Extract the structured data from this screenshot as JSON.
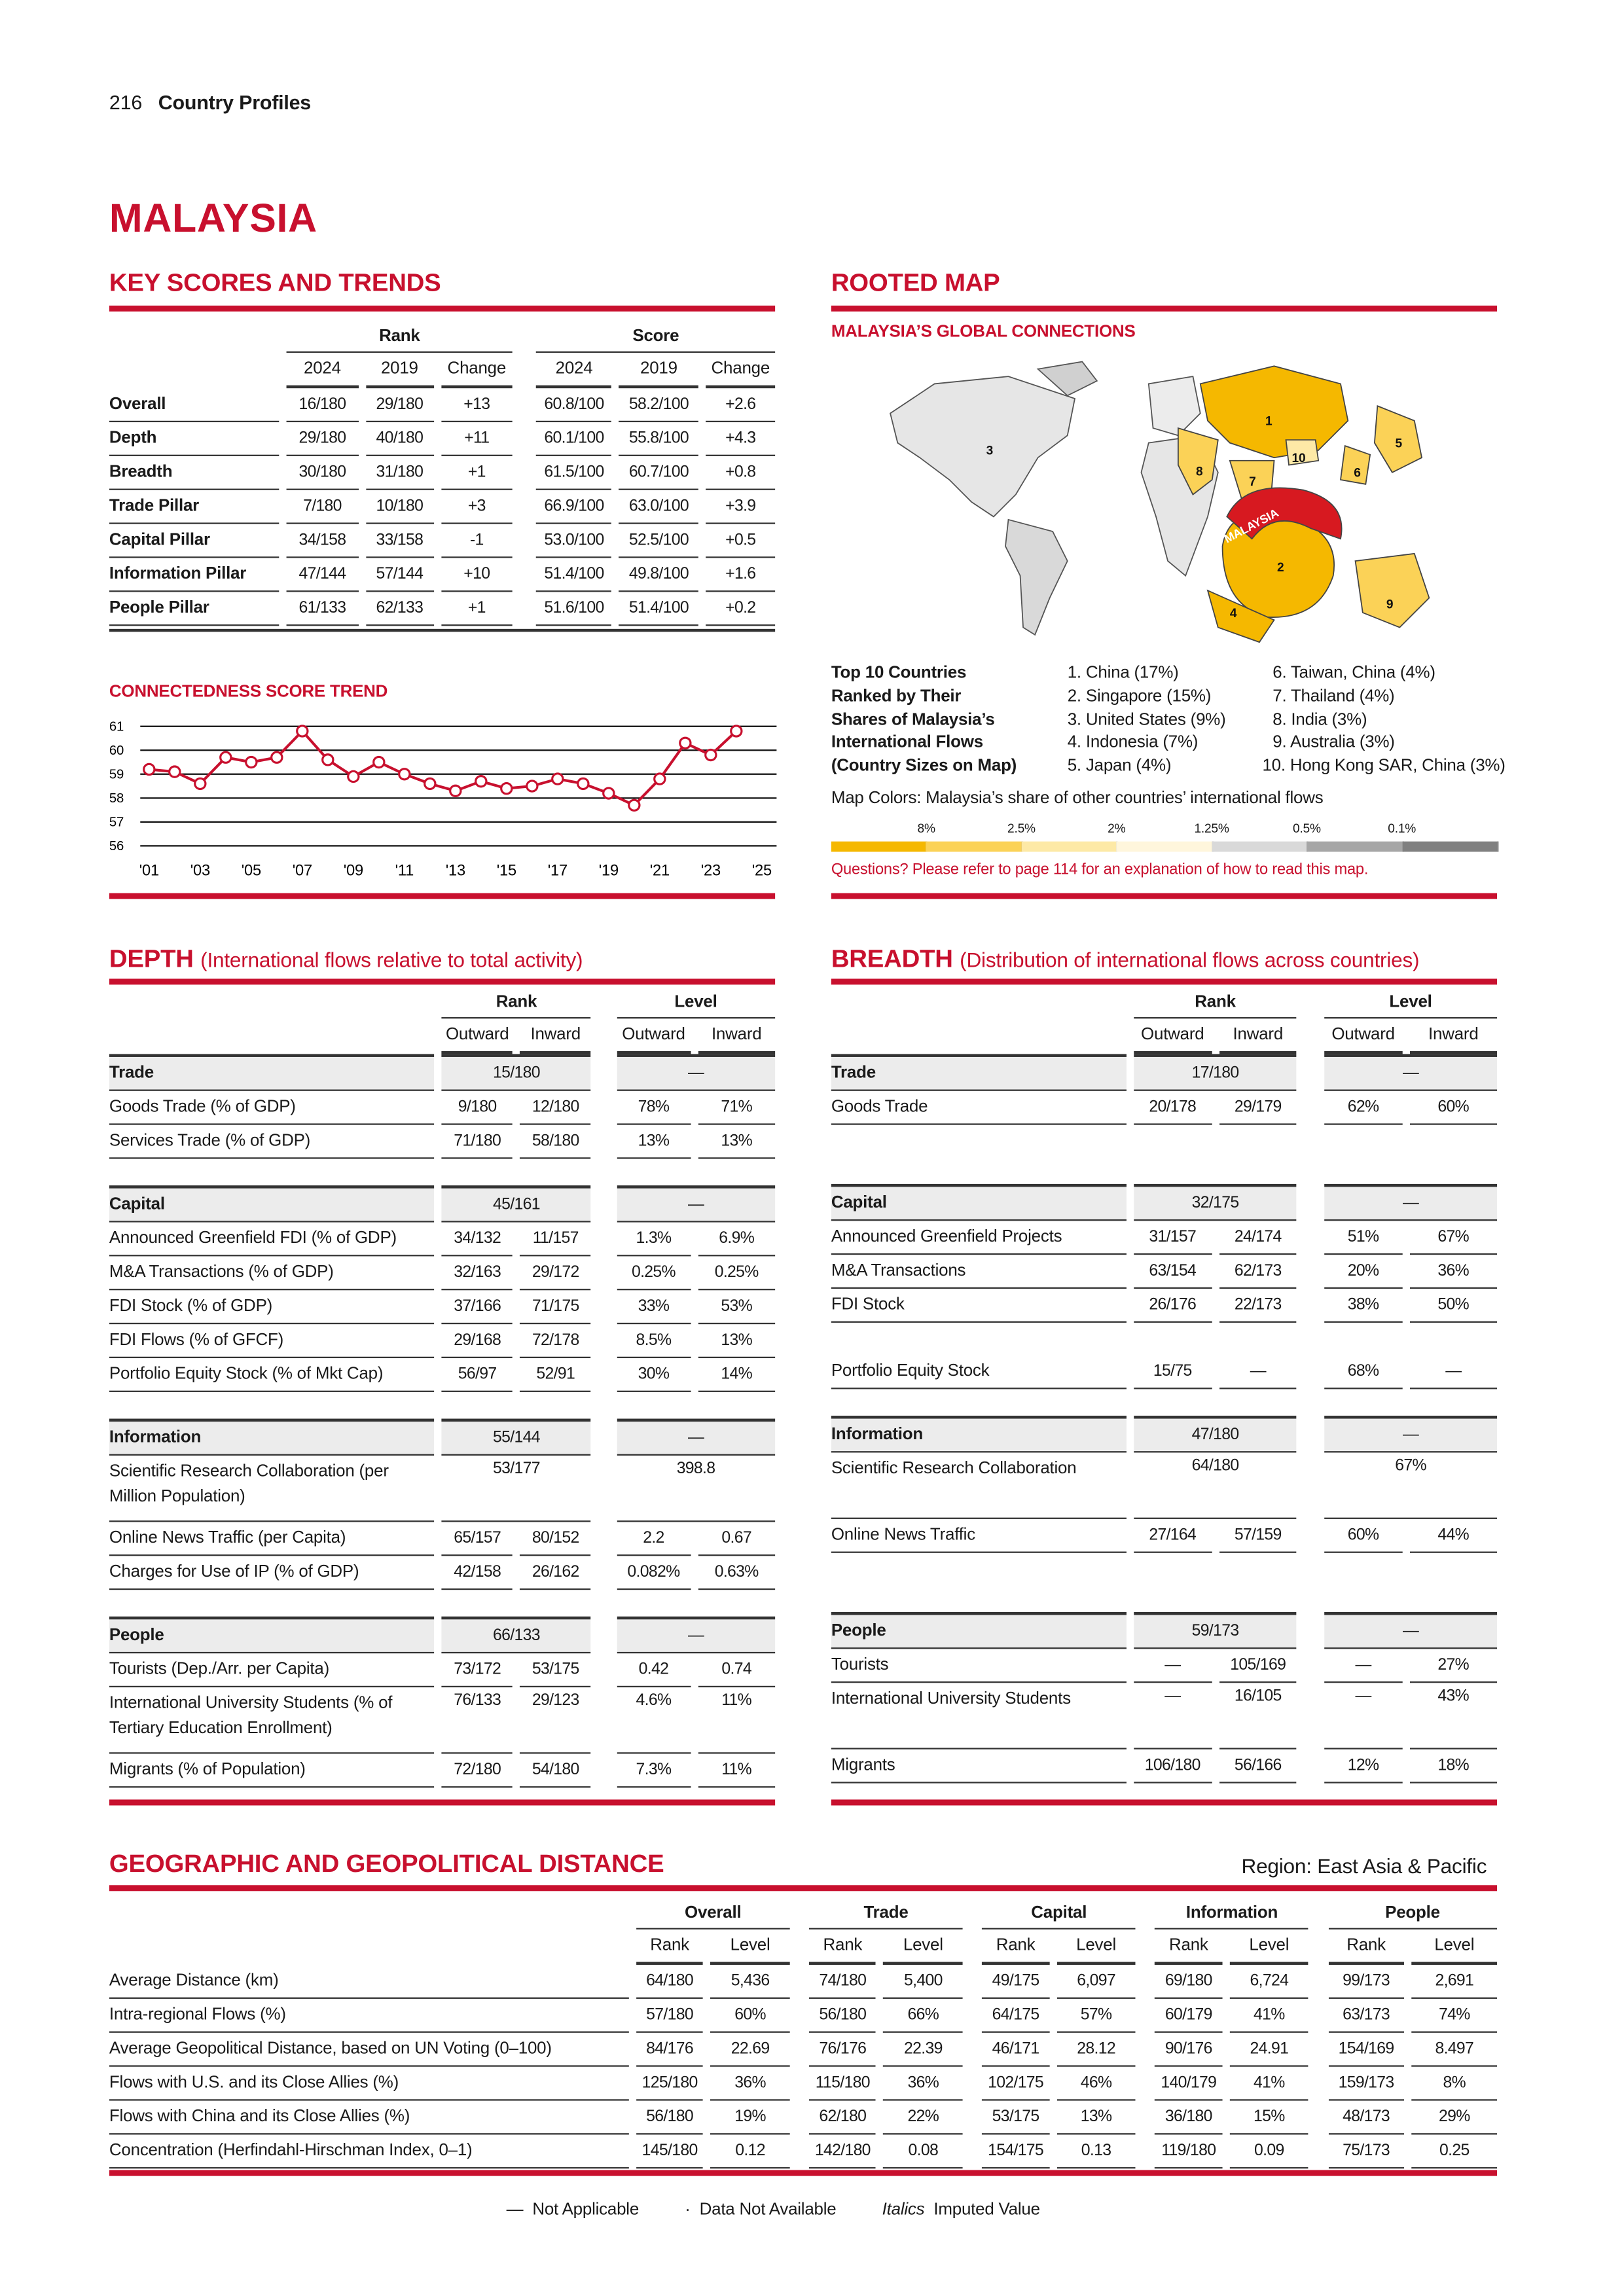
{
  "header": {
    "page_number": "216",
    "section": "Country Profiles"
  },
  "country": "MALAYSIA",
  "key_scores": {
    "title": "KEY SCORES AND TRENDS",
    "group_headers": [
      "Rank",
      "Score"
    ],
    "col_headers": [
      "2024",
      "2019",
      "Change",
      "2024",
      "2019",
      "Change"
    ],
    "rows": [
      {
        "label": "Overall",
        "values": [
          "16/180",
          "29/180",
          "+13",
          "60.8/100",
          "58.2/100",
          "+2.6"
        ]
      },
      {
        "label": "Depth",
        "values": [
          "29/180",
          "40/180",
          "+11",
          "60.1/100",
          "55.8/100",
          "+4.3"
        ]
      },
      {
        "label": "Breadth",
        "values": [
          "30/180",
          "31/180",
          "+1",
          "61.5/100",
          "60.7/100",
          "+0.8"
        ]
      },
      {
        "label": "Trade Pillar",
        "values": [
          "7/180",
          "10/180",
          "+3",
          "66.9/100",
          "63.0/100",
          "+3.9"
        ]
      },
      {
        "label": "Capital Pillar",
        "values": [
          "34/158",
          "33/158",
          "-1",
          "53.0/100",
          "52.5/100",
          "+0.5"
        ]
      },
      {
        "label": "Information Pillar",
        "values": [
          "47/144",
          "57/144",
          "+10",
          "51.4/100",
          "49.8/100",
          "+1.6"
        ]
      },
      {
        "label": "People Pillar",
        "values": [
          "61/133",
          "62/133",
          "+1",
          "51.6/100",
          "51.4/100",
          "+0.2"
        ]
      }
    ]
  },
  "chart_data": {
    "type": "line",
    "title": "CONNECTEDNESS SCORE TREND",
    "x": [
      2001,
      2002,
      2003,
      2004,
      2005,
      2006,
      2007,
      2008,
      2009,
      2010,
      2011,
      2012,
      2013,
      2014,
      2015,
      2016,
      2017,
      2018,
      2019,
      2020,
      2021,
      2022,
      2023,
      2024
    ],
    "values": [
      59.2,
      59.1,
      58.6,
      59.7,
      59.5,
      59.7,
      60.8,
      59.6,
      58.9,
      59.5,
      59.0,
      58.6,
      58.3,
      58.7,
      58.4,
      58.5,
      58.8,
      58.6,
      58.2,
      57.7,
      58.8,
      60.3,
      59.8,
      60.8
    ],
    "xlim": [
      2001,
      2025
    ],
    "ylim": [
      56,
      61
    ],
    "x_ticks": [
      "'01",
      "'03",
      "'05",
      "'07",
      "'09",
      "'11",
      "'13",
      "'15",
      "'17",
      "'19",
      "'21",
      "'23",
      "'25"
    ],
    "y_ticks": [
      "56",
      "57",
      "58",
      "59",
      "60",
      "61"
    ],
    "grid": true,
    "color": "#c8102e"
  },
  "rooted_map": {
    "title": "ROOTED MAP",
    "subtitle": "MALAYSIA’S GLOBAL CONNECTIONS",
    "map_label": "MALAYSIA",
    "map_numbers": [
      "1",
      "2",
      "3",
      "4",
      "5",
      "6",
      "7",
      "8",
      "9",
      "10"
    ],
    "top10_heading": [
      "Top 10 Countries",
      "Ranked by Their",
      "Shares of Malaysia’s",
      "International Flows",
      "(Country Sizes on Map)"
    ],
    "top10": [
      "1. China (17%)",
      "2. Singapore (15%)",
      "3. United States (9%)",
      "4. Indonesia (7%)",
      "5. Japan (4%)",
      "6. Taiwan, China (4%)",
      "7. Thailand (4%)",
      "8. India (3%)",
      "9. Australia (3%)",
      "10. Hong Kong SAR, China (3%)"
    ],
    "colors_caption": "Map Colors: Malaysia’s share of other countries’ international flows",
    "scale_labels": [
      "8%",
      "2.5%",
      "2%",
      "1.25%",
      "0.5%",
      "0.1%"
    ],
    "scale_colors": [
      "#f5b800",
      "#fbd257",
      "#fde9a6",
      "#fff6dc",
      "#d9d9d9",
      "#a6a6a6",
      "#808080"
    ],
    "note": "Questions? Please refer to page 114 for an explanation of how to read this map."
  },
  "depth": {
    "title": "DEPTH",
    "subtitle": "(International flows relative to total activity)",
    "group_headers": [
      "Rank",
      "Level"
    ],
    "col_headers": [
      "Outward",
      "Inward",
      "Outward",
      "Inward"
    ],
    "rows": [
      {
        "kind": "sec",
        "label": "Trade",
        "values": [
          {
            "v": "15/180",
            "span": 2
          },
          {
            "v": "—",
            "span": 2
          }
        ]
      },
      {
        "label": "Goods Trade (% of GDP)",
        "values": [
          "9/180",
          "12/180",
          "78%",
          "71%"
        ]
      },
      {
        "label": "Services Trade (% of GDP)",
        "values": [
          "71/180",
          "58/180",
          "13%",
          "13%"
        ]
      },
      {
        "kind": "spacer"
      },
      {
        "kind": "sec",
        "label": "Capital",
        "values": [
          {
            "v": "45/161",
            "span": 2
          },
          {
            "v": "—",
            "span": 2
          }
        ]
      },
      {
        "label": "Announced Greenfield FDI (% of GDP)",
        "values": [
          "34/132",
          "11/157",
          "1.3%",
          "6.9%"
        ]
      },
      {
        "label": "M&A Transactions (% of GDP)",
        "values": [
          "32/163",
          "29/172",
          "0.25%",
          "0.25%"
        ]
      },
      {
        "label": "FDI Stock (% of GDP)",
        "values": [
          "37/166",
          "71/175",
          "33%",
          "53%"
        ]
      },
      {
        "label": "FDI Flows (% of GFCF)",
        "values": [
          "29/168",
          "72/178",
          "8.5%",
          "13%"
        ]
      },
      {
        "label": "Portfolio Equity Stock (% of Mkt Cap)",
        "values": [
          "56/97",
          "52/91",
          "30%",
          "14%"
        ]
      },
      {
        "kind": "spacer"
      },
      {
        "kind": "sec",
        "label": "Information",
        "values": [
          {
            "v": "55/144",
            "span": 2
          },
          {
            "v": "—",
            "span": 2
          }
        ]
      },
      {
        "kind": "tall",
        "label": "Scientific Research Collaboration (per Million Population)",
        "values": [
          {
            "v": "53/177",
            "span": 2
          },
          {
            "v": "398.8",
            "span": 2
          }
        ]
      },
      {
        "label": "Online News Traffic (per Capita)",
        "values": [
          "65/157",
          "80/152",
          "2.2",
          "0.67"
        ]
      },
      {
        "label": "Charges for Use of IP (% of GDP)",
        "values": [
          "42/158",
          "26/162",
          "0.082%",
          "0.63%"
        ]
      },
      {
        "kind": "spacer"
      },
      {
        "kind": "sec",
        "label": "People",
        "values": [
          {
            "v": "66/133",
            "span": 2
          },
          {
            "v": "—",
            "span": 2
          }
        ]
      },
      {
        "label": "Tourists (Dep./Arr. per Capita)",
        "values": [
          "73/172",
          "53/175",
          "0.42",
          "0.74"
        ]
      },
      {
        "kind": "tall",
        "label": "International University Students (% of Tertiary Education Enrollment)",
        "values": [
          "76/133",
          "29/123",
          "4.6%",
          "11%"
        ]
      },
      {
        "label": "Migrants (% of Population)",
        "values": [
          "72/180",
          "54/180",
          "7.3%",
          "11%"
        ]
      }
    ]
  },
  "breadth": {
    "title": "BREADTH",
    "subtitle": "(Distribution of international flows across countries)",
    "group_headers": [
      "Rank",
      "Level"
    ],
    "col_headers": [
      "Outward",
      "Inward",
      "Outward",
      "Inward"
    ],
    "rows": [
      {
        "kind": "sec",
        "label": "Trade",
        "values": [
          {
            "v": "17/180",
            "span": 2
          },
          {
            "v": "—",
            "span": 2
          }
        ]
      },
      {
        "label": "Goods Trade",
        "values": [
          "20/178",
          "29/179",
          "62%",
          "60%"
        ]
      },
      {
        "kind": "blank"
      },
      {
        "kind": "spacer"
      },
      {
        "kind": "sec",
        "label": "Capital",
        "values": [
          {
            "v": "32/175",
            "span": 2
          },
          {
            "v": "—",
            "span": 2
          }
        ]
      },
      {
        "label": "Announced Greenfield Projects",
        "values": [
          "31/157",
          "24/174",
          "51%",
          "67%"
        ]
      },
      {
        "label": "M&A Transactions",
        "values": [
          "63/154",
          "62/173",
          "20%",
          "36%"
        ]
      },
      {
        "label": "FDI Stock",
        "values": [
          "26/176",
          "22/173",
          "38%",
          "50%"
        ]
      },
      {
        "kind": "blank"
      },
      {
        "label": "Portfolio Equity Stock",
        "values": [
          "15/75",
          "—",
          "68%",
          "—"
        ]
      },
      {
        "kind": "spacer"
      },
      {
        "kind": "sec",
        "label": "Information",
        "values": [
          {
            "v": "47/180",
            "span": 2
          },
          {
            "v": "—",
            "span": 2
          }
        ]
      },
      {
        "kind": "tall",
        "label": "Scientific Research Collaboration",
        "values": [
          {
            "v": "64/180",
            "span": 2
          },
          {
            "v": "67%",
            "span": 2
          }
        ]
      },
      {
        "label": "Online News Traffic",
        "values": [
          "27/164",
          "57/159",
          "60%",
          "44%"
        ]
      },
      {
        "kind": "blank"
      },
      {
        "kind": "spacer"
      },
      {
        "kind": "sec",
        "label": "People",
        "values": [
          {
            "v": "59/173",
            "span": 2
          },
          {
            "v": "—",
            "span": 2
          }
        ]
      },
      {
        "label": "Tourists",
        "values": [
          "—",
          "105/169",
          "—",
          "27%"
        ]
      },
      {
        "kind": "tall",
        "label": "International University Students",
        "values": [
          "—",
          "16/105",
          "—",
          "43%"
        ]
      },
      {
        "label": "Migrants",
        "values": [
          "106/180",
          "56/166",
          "12%",
          "18%"
        ]
      }
    ]
  },
  "geo": {
    "title": "GEOGRAPHIC AND GEOPOLITICAL DISTANCE",
    "region": "Region: East Asia & Pacific",
    "group_headers": [
      "Overall",
      "Trade",
      "Capital",
      "Information",
      "People"
    ],
    "col_headers": [
      "Rank",
      "Level"
    ],
    "rows": [
      {
        "label": "Average Distance (km)",
        "values": [
          "64/180",
          "5,436",
          "74/180",
          "5,400",
          "49/175",
          "6,097",
          "69/180",
          "6,724",
          "99/173",
          "2,691"
        ]
      },
      {
        "label": "Intra-regional Flows (%)",
        "values": [
          "57/180",
          "60%",
          "56/180",
          "66%",
          "64/175",
          "57%",
          "60/179",
          "41%",
          "63/173",
          "74%"
        ]
      },
      {
        "label": "Average Geopolitical Distance, based on UN Voting (0–100)",
        "values": [
          "84/176",
          "22.69",
          "76/176",
          "22.39",
          "46/171",
          "28.12",
          "90/176",
          "24.91",
          "154/169",
          "8.497"
        ]
      },
      {
        "label": "Flows with U.S. and its Close Allies (%)",
        "values": [
          "125/180",
          "36%",
          "115/180",
          "36%",
          "102/175",
          "46%",
          "140/179",
          "41%",
          "159/173",
          "8%"
        ]
      },
      {
        "label": "Flows with China and its Close Allies (%)",
        "values": [
          "56/180",
          "19%",
          "62/180",
          "22%",
          "53/175",
          "13%",
          "36/180",
          "15%",
          "48/173",
          "29%"
        ]
      },
      {
        "label": "Concentration (Herfindahl-Hirschman Index, 0–1)",
        "values": [
          "145/180",
          "0.12",
          "142/180",
          "0.08",
          "154/175",
          "0.13",
          "119/180",
          "0.09",
          "75/173",
          "0.25"
        ]
      }
    ]
  },
  "footer": {
    "not_applicable_symbol": "—",
    "not_applicable": "Not Applicable",
    "not_available_symbol": "·",
    "not_available": "Data Not Available",
    "italics_symbol": "Italics",
    "italics": "Imputed Value"
  },
  "accent_color": "#c8102e"
}
